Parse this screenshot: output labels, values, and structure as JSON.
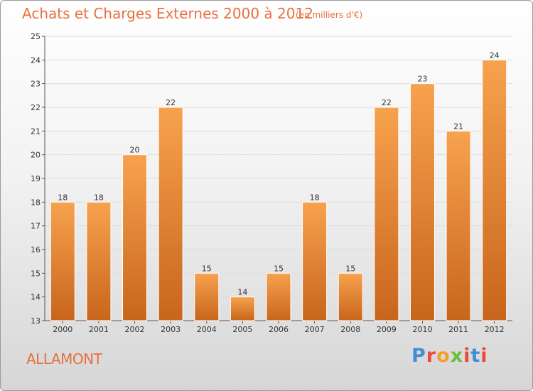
{
  "header": {
    "title": "Achats et Charges Externes 2000 à 2012",
    "subtitle": "(en milliers d'€)"
  },
  "footer": {
    "commune": "ALLAMONT",
    "logo_text": "Proxiti"
  },
  "colors": {
    "bar_top": "#f7a24e",
    "bar_bottom": "#c8651c",
    "title": "#e8703c"
  },
  "chart_data": {
    "type": "bar",
    "categories": [
      "2000",
      "2001",
      "2002",
      "2003",
      "2004",
      "2005",
      "2006",
      "2007",
      "2008",
      "2009",
      "2010",
      "2011",
      "2012"
    ],
    "values": [
      18,
      18,
      20,
      22,
      15,
      14,
      15,
      18,
      15,
      22,
      23,
      21,
      24
    ],
    "ylim": [
      13,
      25
    ],
    "yticks": [
      13,
      14,
      15,
      16,
      17,
      18,
      19,
      20,
      21,
      22,
      23,
      24,
      25
    ],
    "grid": true,
    "data_labels": true,
    "title": "Achats et Charges Externes 2000 à 2012",
    "xlabel": "",
    "ylabel": ""
  }
}
